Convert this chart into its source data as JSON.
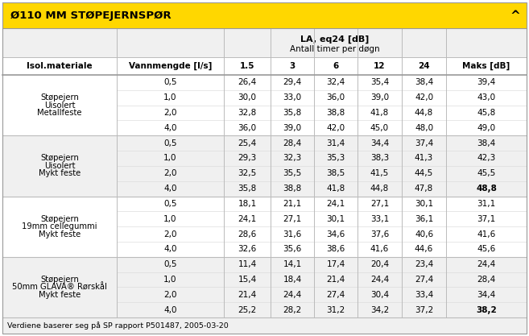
{
  "title": "Ø110 MM STØPEJERNSРØR",
  "title_fixed": "Ø110 MM STØPEJERNSРØR",
  "header_bg": "#FFD700",
  "footer_text": "Verdiene baserer seg på SP rapport P501487, 2005-03-20",
  "col_headers": [
    "Isol.materiale",
    "Vannmengde [l/s]",
    "1.5",
    "3",
    "6",
    "12",
    "24",
    "Maks [dB]"
  ],
  "la_label1": "LA, eq24 [dB]",
  "la_label2": "Antall timer per døgn",
  "sections": [
    {
      "label_lines": [
        "Støpejern",
        "Uisolert",
        "Metallfeste"
      ],
      "rows": [
        {
          "v": "0,5",
          "vals": [
            "26,4",
            "29,4",
            "32,4",
            "35,4",
            "38,4",
            "39,4"
          ],
          "bold_last": false
        },
        {
          "v": "1,0",
          "vals": [
            "30,0",
            "33,0",
            "36,0",
            "39,0",
            "42,0",
            "43,0"
          ],
          "bold_last": false
        },
        {
          "v": "2,0",
          "vals": [
            "32,8",
            "35,8",
            "38,8",
            "41,8",
            "44,8",
            "45,8"
          ],
          "bold_last": false
        },
        {
          "v": "4,0",
          "vals": [
            "36,0",
            "39,0",
            "42,0",
            "45,0",
            "48,0",
            "49,0"
          ],
          "bold_last": false
        }
      ]
    },
    {
      "label_lines": [
        "Støpejern",
        "Uisolert",
        "Mykt feste"
      ],
      "rows": [
        {
          "v": "0,5",
          "vals": [
            "25,4",
            "28,4",
            "31,4",
            "34,4",
            "37,4",
            "38,4"
          ],
          "bold_last": false
        },
        {
          "v": "1,0",
          "vals": [
            "29,3",
            "32,3",
            "35,3",
            "38,3",
            "41,3",
            "42,3"
          ],
          "bold_last": false
        },
        {
          "v": "2,0",
          "vals": [
            "32,5",
            "35,5",
            "38,5",
            "41,5",
            "44,5",
            "45,5"
          ],
          "bold_last": false
        },
        {
          "v": "4,0",
          "vals": [
            "35,8",
            "38,8",
            "41,8",
            "44,8",
            "47,8",
            "48,8"
          ],
          "bold_last": true
        }
      ]
    },
    {
      "label_lines": [
        "Støpejern",
        "19mm cellegummi",
        "Mykt feste"
      ],
      "rows": [
        {
          "v": "0,5",
          "vals": [
            "18,1",
            "21,1",
            "24,1",
            "27,1",
            "30,1",
            "31,1"
          ],
          "bold_last": false
        },
        {
          "v": "1,0",
          "vals": [
            "24,1",
            "27,1",
            "30,1",
            "33,1",
            "36,1",
            "37,1"
          ],
          "bold_last": false
        },
        {
          "v": "2,0",
          "vals": [
            "28,6",
            "31,6",
            "34,6",
            "37,6",
            "40,6",
            "41,6"
          ],
          "bold_last": false
        },
        {
          "v": "4,0",
          "vals": [
            "32,6",
            "35,6",
            "38,6",
            "41,6",
            "44,6",
            "45,6"
          ],
          "bold_last": false
        }
      ]
    },
    {
      "label_lines": [
        "Støpejern",
        "50mm GLAVA® Rørskål",
        "Mykt feste"
      ],
      "rows": [
        {
          "v": "0,5",
          "vals": [
            "11,4",
            "14,1",
            "17,4",
            "20,4",
            "23,4",
            "24,4"
          ],
          "bold_last": false
        },
        {
          "v": "1,0",
          "vals": [
            "15,4",
            "18,4",
            "21,4",
            "24,4",
            "27,4",
            "28,4"
          ],
          "bold_last": false
        },
        {
          "v": "2,0",
          "vals": [
            "21,4",
            "24,4",
            "27,4",
            "30,4",
            "33,4",
            "34,4"
          ],
          "bold_last": false
        },
        {
          "v": "4,0",
          "vals": [
            "25,2",
            "28,2",
            "31,2",
            "34,2",
            "37,2",
            "38,2"
          ],
          "bold_last": true
        }
      ]
    }
  ]
}
